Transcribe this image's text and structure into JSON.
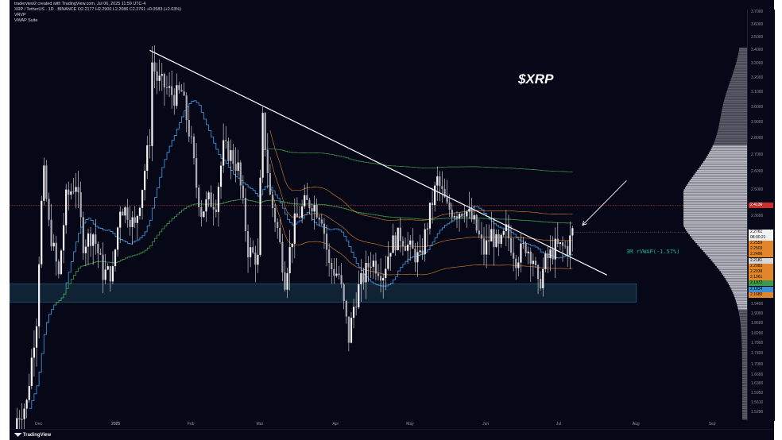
{
  "header": {
    "line1": "traderview2 created with TradingView.com, Jul 06, 2025 11:59 UTC-4",
    "line2": "XRP / TetherUS · 1D · BINANCE  O2.2177  H2.2900  L2.2086  C2.2761  +0.0583 (+2.63%)",
    "line3": "VRVP",
    "line4": "VWAP Suite"
  },
  "annotations": {
    "ticker": "$XRP",
    "vwap_label": "3M rVWAP(-1.57%)"
  },
  "footer": {
    "logo_text": "TradingView"
  },
  "colors": {
    "background": "#060717",
    "candle": "#e6e6ea",
    "trendline": "#ffffff",
    "support_zone": "#2b6a86",
    "resistance_line": "#c8302e",
    "vwap_blue": "#3a8fd6",
    "vwap_green": "#3d9a48",
    "vwap_orange": "#e3862a",
    "volume_profile": "#c9cad3"
  },
  "chart_data": {
    "type": "candlestick",
    "title": "XRP / TetherUS · 1D · BINANCE",
    "y_scale": "log",
    "ylim": [
      1.5,
      3.72
    ],
    "x_range": [
      "2024-11-19",
      "2025-09-15"
    ],
    "y_ticks": [
      "3.7000",
      "3.6000",
      "3.5000",
      "3.4000",
      "3.3000",
      "3.2000",
      "3.1000",
      "3.0000",
      "2.9000",
      "2.8000",
      "2.7000",
      "2.6000",
      "2.5000",
      "2.3600",
      "2.2181",
      "2.0800",
      "1.9800",
      "1.9400",
      "1.9000",
      "1.8600",
      "1.8200",
      "1.7800",
      "1.7400",
      "1.7000",
      "1.6600",
      "1.6300",
      "1.5950",
      "1.5610",
      "1.5290"
    ],
    "x_ticks": [
      "Dec",
      "2025",
      "Feb",
      "Mar",
      "Apr",
      "May",
      "Jun",
      "Jul",
      "Aug",
      "Sep"
    ],
    "series_close": [
      [
        "2024-11-22",
        1.51
      ],
      [
        "2024-11-26",
        1.56
      ],
      [
        "2024-11-30",
        1.88
      ],
      [
        "2024-12-02",
        2.42
      ],
      [
        "2024-12-03",
        2.58
      ],
      [
        "2024-12-05",
        2.31
      ],
      [
        "2024-12-09",
        2.06
      ],
      [
        "2024-12-12",
        2.45
      ],
      [
        "2024-12-16",
        2.54
      ],
      [
        "2024-12-19",
        2.22
      ],
      [
        "2024-12-23",
        2.27
      ],
      [
        "2024-12-27",
        2.08
      ],
      [
        "2024-12-31",
        2.08
      ],
      [
        "2025-01-03",
        2.41
      ],
      [
        "2025-01-06",
        2.38
      ],
      [
        "2025-01-09",
        2.3
      ],
      [
        "2025-01-12",
        2.52
      ],
      [
        "2025-01-15",
        2.8
      ],
      [
        "2025-01-16",
        3.31
      ],
      [
        "2025-01-18",
        3.19
      ],
      [
        "2025-01-21",
        3.14
      ],
      [
        "2025-01-25",
        3.07
      ],
      [
        "2025-01-28",
        3.1
      ],
      [
        "2025-02-01",
        2.76
      ],
      [
        "2025-02-03",
        2.52
      ],
      [
        "2025-02-05",
        2.38
      ],
      [
        "2025-02-08",
        2.44
      ],
      [
        "2025-02-11",
        2.43
      ],
      [
        "2025-02-14",
        2.74
      ],
      [
        "2025-02-17",
        2.7
      ],
      [
        "2025-02-20",
        2.62
      ],
      [
        "2025-02-24",
        2.19
      ],
      [
        "2025-02-28",
        2.14
      ],
      [
        "2025-03-02",
        2.91
      ],
      [
        "2025-03-05",
        2.46
      ],
      [
        "2025-03-08",
        2.29
      ],
      [
        "2025-03-11",
        2.05
      ],
      [
        "2025-03-15",
        2.32
      ],
      [
        "2025-03-19",
        2.42
      ],
      [
        "2025-03-22",
        2.43
      ],
      [
        "2025-03-26",
        2.36
      ],
      [
        "2025-03-29",
        2.11
      ],
      [
        "2025-04-02",
        2.07
      ],
      [
        "2025-04-06",
        1.8
      ],
      [
        "2025-04-08",
        1.93
      ],
      [
        "2025-04-10",
        2.01
      ],
      [
        "2025-04-15",
        2.14
      ],
      [
        "2025-04-20",
        2.08
      ],
      [
        "2025-04-23",
        2.21
      ],
      [
        "2025-04-27",
        2.26
      ],
      [
        "2025-05-01",
        2.19
      ],
      [
        "2025-05-05",
        2.14
      ],
      [
        "2025-05-09",
        2.38
      ],
      [
        "2025-05-12",
        2.55
      ],
      [
        "2025-05-16",
        2.4
      ],
      [
        "2025-05-20",
        2.38
      ],
      [
        "2025-05-23",
        2.4
      ],
      [
        "2025-05-27",
        2.32
      ],
      [
        "2025-05-31",
        2.18
      ],
      [
        "2025-06-03",
        2.27
      ],
      [
        "2025-06-06",
        2.19
      ],
      [
        "2025-06-09",
        2.28
      ],
      [
        "2025-06-13",
        2.15
      ],
      [
        "2025-06-17",
        2.21
      ],
      [
        "2025-06-20",
        2.15
      ],
      [
        "2025-06-22",
        2.01
      ],
      [
        "2025-06-25",
        2.13
      ],
      [
        "2025-06-29",
        2.2
      ],
      [
        "2025-07-02",
        2.2
      ],
      [
        "2025-07-04",
        2.2
      ],
      [
        "2025-07-06",
        2.2761
      ]
    ],
    "current_price": "2.2761",
    "countdown": "08:00:21",
    "price_labels": [
      {
        "value": "2.4136",
        "color": "#c8302e",
        "text_color": "#ffffff"
      },
      {
        "value": "2.2761",
        "color": "#f2f2f2",
        "text_color": "#000000"
      },
      {
        "value": "2.2559",
        "color": "#e3862a",
        "text_color": "#000000"
      },
      {
        "value": "2.2503",
        "color": "#e3862a",
        "text_color": "#000000"
      },
      {
        "value": "2.2496",
        "color": "#e3862a",
        "text_color": "#000000"
      },
      {
        "value": "2.2181",
        "color": "#d8d8d8",
        "text_color": "#000000"
      },
      {
        "value": "2.2083",
        "color": "#e3862a",
        "text_color": "#000000"
      },
      {
        "value": "2.2038",
        "color": "#e3862a",
        "text_color": "#000000"
      },
      {
        "value": "2.1961",
        "color": "#e3862a",
        "text_color": "#000000"
      },
      {
        "value": "2.1972",
        "color": "#3d9a48",
        "text_color": "#000000"
      },
      {
        "value": "2.1834",
        "color": "#3a8fd6",
        "text_color": "#000000"
      },
      {
        "value": "2.1680",
        "color": "#e3862a",
        "text_color": "#000000"
      }
    ],
    "support_zone": [
      1.95,
      2.03
    ],
    "resistance_level": 2.4136,
    "trendline": [
      [
        "2025-01-15",
        3.4
      ],
      [
        "2025-07-20",
        2.07
      ]
    ],
    "arrow": [
      [
        "2025-07-28",
        2.55
      ],
      [
        "2025-07-10",
        2.31
      ]
    ],
    "volume_profile_peak": 2.4
  }
}
